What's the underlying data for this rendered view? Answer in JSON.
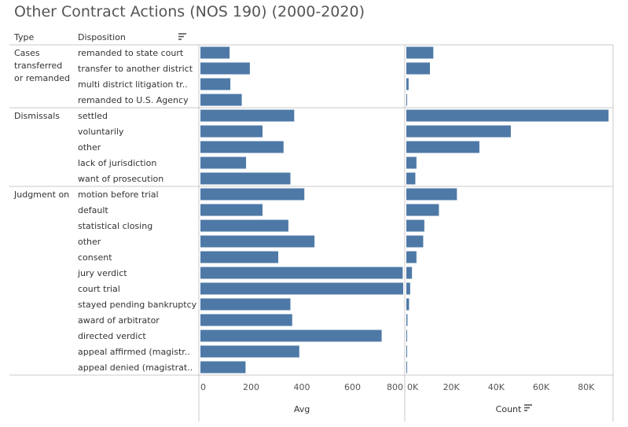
{
  "title": "Other Contract Actions (NOS 190) (2000-2020)",
  "headers": {
    "type": "Type",
    "disposition": "Disposition"
  },
  "icons": {
    "disposition_sort": "sort-descending-icon",
    "count_sort": "sort-descending-icon"
  },
  "colors": {
    "bar": "#4e79a7",
    "separator": "#c8c8c8"
  },
  "chart_data": {
    "type": "bar",
    "orientation": "horizontal",
    "groups": [
      {
        "type": "Cases transferred or remanded",
        "type_lines": [
          "Cases",
          "transferred",
          "or remanded"
        ],
        "rows": [
          {
            "disposition": "remanded to state court",
            "avg": 115,
            "count": 12000
          },
          {
            "disposition": "transfer to another district",
            "avg": 195,
            "count": 10500
          },
          {
            "disposition": "multi district litigation tr..",
            "avg": 118,
            "count": 1000
          },
          {
            "disposition": "remanded to U.S. Agency",
            "avg": 163,
            "count": 0
          }
        ]
      },
      {
        "type": "Dismissals",
        "type_lines": [
          "Dismissals"
        ],
        "rows": [
          {
            "disposition": "settled",
            "avg": 370,
            "count": 90000
          },
          {
            "disposition": "voluntarily",
            "avg": 245,
            "count": 46500
          },
          {
            "disposition": "other",
            "avg": 328,
            "count": 32500
          },
          {
            "disposition": "lack of jurisdiction",
            "avg": 180,
            "count": 4500
          },
          {
            "disposition": "want of prosecution",
            "avg": 355,
            "count": 4000
          }
        ]
      },
      {
        "type": "Judgment on",
        "type_lines": [
          "Judgment on"
        ],
        "rows": [
          {
            "disposition": "motion before trial",
            "avg": 410,
            "count": 22500
          },
          {
            "disposition": "default",
            "avg": 245,
            "count": 14500
          },
          {
            "disposition": "statistical closing",
            "avg": 347,
            "count": 8000
          },
          {
            "disposition": "other",
            "avg": 450,
            "count": 7500
          },
          {
            "disposition": "consent",
            "avg": 307,
            "count": 4500
          },
          {
            "disposition": "jury verdict",
            "avg": 798,
            "count": 2500
          },
          {
            "disposition": "court trial",
            "avg": 800,
            "count": 1700
          },
          {
            "disposition": "stayed pending bankruptcy",
            "avg": 355,
            "count": 1200
          },
          {
            "disposition": "award of arbitrator",
            "avg": 362,
            "count": 500
          },
          {
            "disposition": "directed verdict",
            "avg": 715,
            "count": 300
          },
          {
            "disposition": "appeal affirmed (magistr..",
            "avg": 390,
            "count": 0
          },
          {
            "disposition": "appeal denied (magistrat..",
            "avg": 178,
            "count": 0
          }
        ]
      }
    ],
    "avg_axis": {
      "title": "Avg",
      "range": [
        0,
        800
      ],
      "ticks": [
        0,
        200,
        400,
        600,
        800
      ],
      "tick_labels": [
        "0",
        "200",
        "400",
        "600",
        "800"
      ]
    },
    "count_axis": {
      "title": "Count",
      "range": [
        0,
        92000
      ],
      "ticks": [
        0,
        20000,
        40000,
        60000,
        80000
      ],
      "tick_labels": [
        "0K",
        "20K",
        "40K",
        "60K",
        "80K"
      ]
    },
    "grid": false,
    "legend": "none"
  }
}
